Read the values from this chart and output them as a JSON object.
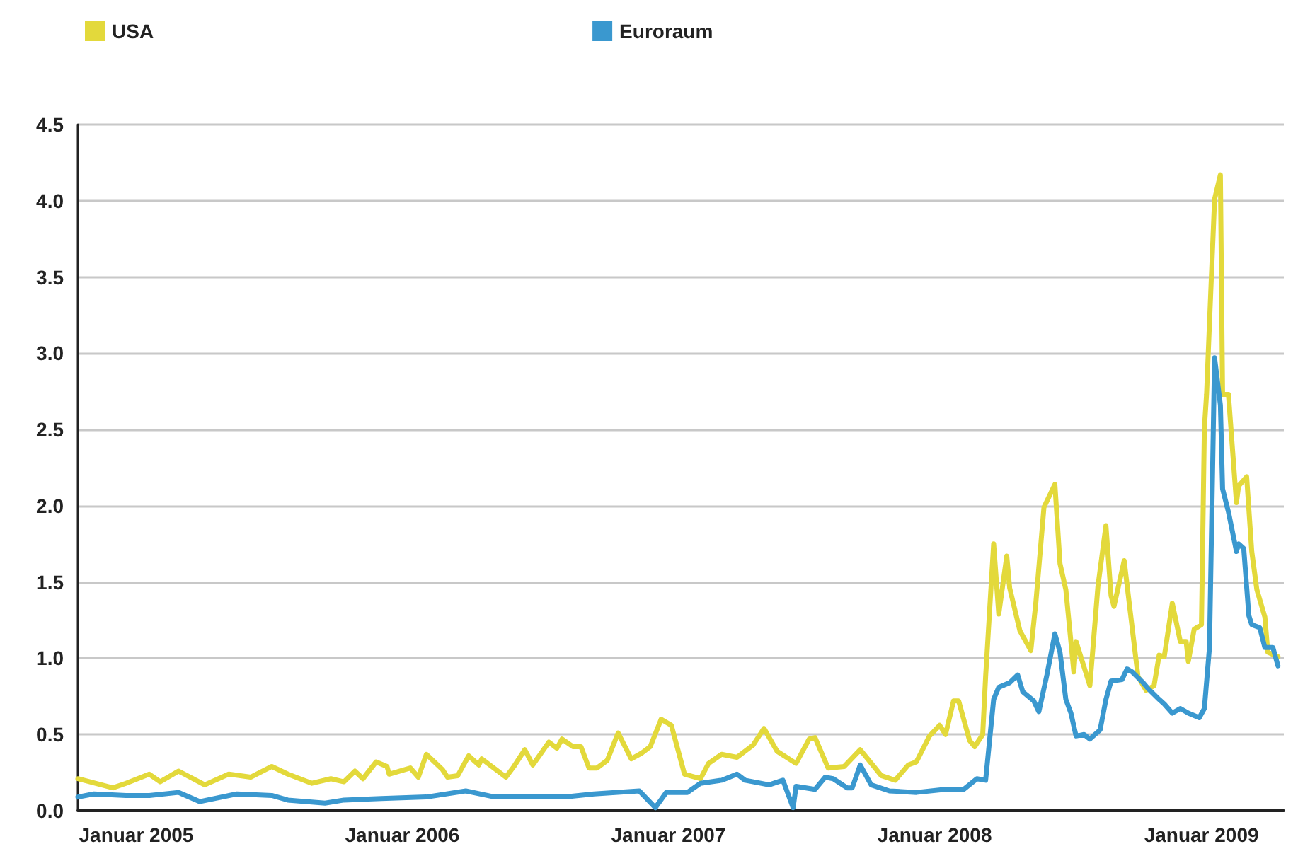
{
  "chart_data": {
    "type": "line",
    "xlim": [
      "2004-10-13",
      "2009-04-24"
    ],
    "xticks": [
      {
        "value": "2005-01-01",
        "label": "Januar 2005"
      },
      {
        "value": "2006-01-01",
        "label": "Januar 2006"
      },
      {
        "value": "2007-01-01",
        "label": "Januar 2007"
      },
      {
        "value": "2008-01-01",
        "label": "Januar 2008"
      },
      {
        "value": "2009-01-01",
        "label": "Januar 2009"
      }
    ],
    "ylim": [
      0,
      4.5
    ],
    "yticks": [
      {
        "value": 0,
        "label": "0.0"
      },
      0.5,
      {
        "value": 1,
        "label": "1.0"
      },
      1.5,
      {
        "value": 2,
        "label": "2.0"
      },
      2.5,
      {
        "value": 3,
        "label": "3.0"
      },
      3.5,
      {
        "value": 4,
        "label": "4.0"
      },
      4.5
    ],
    "grid": "y",
    "legend": "top left",
    "marker": "none",
    "line_style": "solid",
    "series": [
      {
        "name": "USA",
        "color": "#e3d93b",
        "x": [
          "2004-10-13",
          "2004-11-30",
          "2004-12-18",
          "2005-01-19",
          "2005-02-03",
          "2005-02-28",
          "2005-04-05",
          "2005-05-08",
          "2005-06-07",
          "2005-07-06",
          "2005-07-28",
          "2005-08-30",
          "2005-09-25",
          "2005-10-13",
          "2005-10-28",
          "2005-11-08",
          "2005-11-26",
          "2005-12-11",
          "2005-12-14",
          "2006-01-12",
          "2006-01-23",
          "2006-02-03",
          "2006-02-25",
          "2006-03-04",
          "2006-03-18",
          "2006-04-02",
          "2006-04-16",
          "2006-04-20",
          "2006-05-23",
          "2006-06-03",
          "2006-06-18",
          "2006-06-29",
          "2006-07-21",
          "2006-08-01",
          "2006-08-08",
          "2006-08-23",
          "2006-09-03",
          "2006-09-14",
          "2006-09-25",
          "2006-10-09",
          "2006-10-24",
          "2006-11-11",
          "2006-11-26",
          "2006-12-07",
          "2006-12-22",
          "2007-01-05",
          "2007-01-23",
          "2007-02-14",
          "2007-02-25",
          "2007-03-15",
          "2007-04-05",
          "2007-04-27",
          "2007-05-12",
          "2007-05-30",
          "2007-06-25",
          "2007-07-13",
          "2007-07-21",
          "2007-08-08",
          "2007-08-30",
          "2007-09-21",
          "2007-10-20",
          "2007-11-08",
          "2007-11-26",
          "2007-12-07",
          "2007-12-25",
          "2008-01-08",
          "2008-01-16",
          "2008-01-27",
          "2008-02-03",
          "2008-02-18",
          "2008-02-25",
          "2008-03-07",
          "2008-03-11",
          "2008-03-22",
          "2008-03-29",
          "2008-04-09",
          "2008-04-13",
          "2008-04-27",
          "2008-05-12",
          "2008-05-19",
          "2008-05-30",
          "2008-06-14",
          "2008-06-21",
          "2008-06-29",
          "2008-07-10",
          "2008-07-13",
          "2008-08-01",
          "2008-08-12",
          "2008-08-23",
          "2008-08-30",
          "2008-09-03",
          "2008-09-17",
          "2008-09-25",
          "2008-10-06",
          "2008-10-17",
          "2008-10-28",
          "2008-11-04",
          "2008-11-11",
          "2008-11-22",
          "2008-12-03",
          "2008-12-11",
          "2008-12-14",
          "2008-12-22",
          "2009-01-01",
          "2009-01-05",
          "2009-01-08",
          "2009-01-19",
          "2009-01-27",
          "2009-01-30",
          "2009-02-07",
          "2009-02-18",
          "2009-02-21",
          "2009-03-04",
          "2009-03-11",
          "2009-03-18",
          "2009-03-29",
          "2009-04-02",
          "2009-04-16"
        ],
        "values": [
          0.21,
          0.15,
          0.18,
          0.24,
          0.19,
          0.26,
          0.17,
          0.24,
          0.22,
          0.29,
          0.24,
          0.18,
          0.21,
          0.19,
          0.26,
          0.21,
          0.32,
          0.29,
          0.24,
          0.28,
          0.22,
          0.37,
          0.27,
          0.22,
          0.23,
          0.36,
          0.3,
          0.34,
          0.22,
          0.29,
          0.4,
          0.3,
          0.45,
          0.41,
          0.47,
          0.42,
          0.42,
          0.28,
          0.28,
          0.33,
          0.51,
          0.34,
          0.38,
          0.42,
          0.6,
          0.56,
          0.24,
          0.21,
          0.31,
          0.37,
          0.35,
          0.43,
          0.54,
          0.39,
          0.31,
          0.47,
          0.48,
          0.28,
          0.29,
          0.4,
          0.23,
          0.2,
          0.3,
          0.32,
          0.49,
          0.56,
          0.5,
          0.72,
          0.72,
          0.46,
          0.42,
          0.5,
          0.88,
          1.75,
          1.29,
          1.67,
          1.46,
          1.18,
          1.05,
          1.37,
          1.99,
          2.14,
          1.62,
          1.45,
          0.91,
          1.11,
          0.82,
          1.47,
          1.87,
          1.41,
          1.34,
          1.64,
          1.32,
          0.88,
          0.79,
          0.82,
          1.02,
          1.01,
          1.36,
          1.11,
          1.11,
          0.98,
          1.19,
          1.22,
          2.51,
          2.73,
          4.01,
          4.17,
          2.73,
          2.73,
          2.02,
          2.13,
          2.19,
          1.7,
          1.45,
          1.27,
          1.04,
          1.01
        ]
      },
      {
        "name": "Euroraum",
        "color": "#3a98cf",
        "x": [
          "2004-10-13",
          "2004-11-04",
          "2004-12-18",
          "2005-01-19",
          "2005-02-28",
          "2005-03-29",
          "2005-05-19",
          "2005-07-06",
          "2005-07-28",
          "2005-09-17",
          "2005-10-13",
          "2005-12-03",
          "2006-02-03",
          "2006-03-29",
          "2006-05-08",
          "2006-08-12",
          "2006-09-21",
          "2006-11-22",
          "2006-12-14",
          "2006-12-29",
          "2007-01-27",
          "2007-02-14",
          "2007-03-15",
          "2007-04-05",
          "2007-04-16",
          "2007-05-19",
          "2007-06-07",
          "2007-06-21",
          "2007-06-25",
          "2007-07-21",
          "2007-08-04",
          "2007-08-15",
          "2007-09-03",
          "2007-09-10",
          "2007-09-21",
          "2007-10-06",
          "2007-10-31",
          "2007-12-07",
          "2008-01-16",
          "2008-02-10",
          "2008-02-28",
          "2008-03-11",
          "2008-03-22",
          "2008-03-29",
          "2008-04-13",
          "2008-04-24",
          "2008-05-01",
          "2008-05-16",
          "2008-05-23",
          "2008-06-03",
          "2008-06-14",
          "2008-06-21",
          "2008-06-29",
          "2008-07-06",
          "2008-07-13",
          "2008-07-24",
          "2008-08-01",
          "2008-08-15",
          "2008-08-23",
          "2008-08-30",
          "2008-09-14",
          "2008-09-21",
          "2008-09-28",
          "2008-10-13",
          "2008-10-20",
          "2008-11-04",
          "2008-11-11",
          "2008-11-22",
          "2008-12-03",
          "2008-12-14",
          "2008-12-29",
          "2009-01-05",
          "2009-01-12",
          "2009-01-19",
          "2009-01-27",
          "2009-01-30",
          "2009-02-07",
          "2009-02-18",
          "2009-02-21",
          "2009-02-28",
          "2009-03-07",
          "2009-03-11",
          "2009-03-22",
          "2009-03-29",
          "2009-04-09",
          "2009-04-16"
        ],
        "values": [
          0.09,
          0.11,
          0.1,
          0.1,
          0.12,
          0.06,
          0.11,
          0.1,
          0.07,
          0.05,
          0.07,
          0.08,
          0.09,
          0.13,
          0.09,
          0.09,
          0.11,
          0.13,
          0.02,
          0.12,
          0.12,
          0.18,
          0.2,
          0.24,
          0.2,
          0.17,
          0.2,
          0.02,
          0.16,
          0.14,
          0.22,
          0.21,
          0.15,
          0.15,
          0.3,
          0.17,
          0.13,
          0.12,
          0.14,
          0.14,
          0.21,
          0.2,
          0.73,
          0.81,
          0.84,
          0.89,
          0.78,
          0.72,
          0.65,
          0.89,
          1.16,
          1.04,
          0.73,
          0.64,
          0.49,
          0.5,
          0.47,
          0.53,
          0.73,
          0.85,
          0.86,
          0.93,
          0.91,
          0.84,
          0.8,
          0.73,
          0.7,
          0.64,
          0.67,
          0.64,
          0.61,
          0.67,
          1.07,
          2.97,
          2.66,
          2.11,
          1.96,
          1.7,
          1.75,
          1.72,
          1.28,
          1.22,
          1.2,
          1.07,
          1.07,
          0.95
        ]
      }
    ]
  }
}
